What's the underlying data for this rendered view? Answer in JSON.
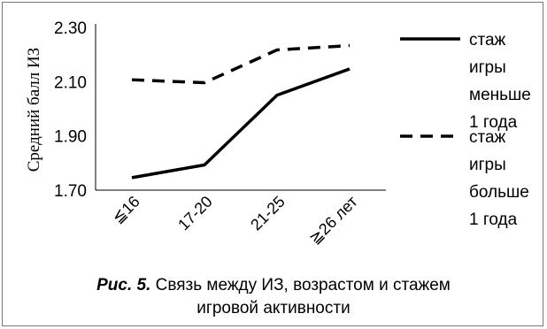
{
  "chart_data": {
    "type": "line",
    "title": "",
    "xlabel": "",
    "ylabel": "Средний балл ИЗ",
    "categories": [
      "≦16",
      "17-20",
      "21-25",
      "≧26 лет"
    ],
    "ylim": [
      1.7,
      2.3
    ],
    "yticks": [
      "1.70",
      "1.90",
      "2.10",
      "2.30"
    ],
    "grid": false,
    "legend_position": "right",
    "series": [
      {
        "name": "стаж игры меньше 1 года",
        "name_lines": [
          "стаж",
          "игры",
          "меньше",
          "1 года"
        ],
        "style": "solid",
        "color": "#000000",
        "values": [
          1.746,
          1.793,
          2.05,
          2.147
        ]
      },
      {
        "name": "стаж игры больше 1 года",
        "name_lines": [
          "стаж",
          "игры",
          "больше",
          "1 года"
        ],
        "style": "dashed",
        "color": "#000000",
        "values": [
          2.107,
          2.096,
          2.217,
          2.233
        ]
      }
    ]
  },
  "caption": {
    "label": "Рис. 5.",
    "line1": " Связь между ИЗ, возрастом и стажем",
    "line2": "игровой активности"
  }
}
